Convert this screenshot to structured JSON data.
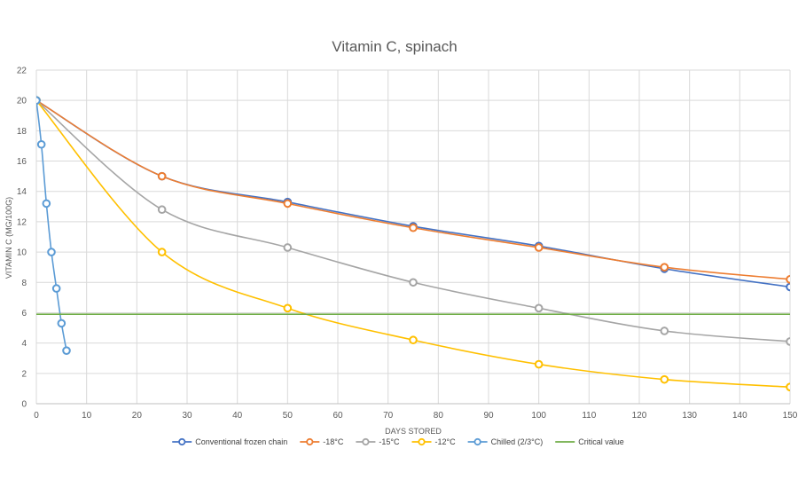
{
  "chart_data": {
    "type": "line",
    "title": "Vitamin C, spinach",
    "xlabel": "DAYS STORED",
    "ylabel": "VITAMIN C (MG/100G)",
    "xlim": [
      0,
      150
    ],
    "ylim": [
      0,
      22
    ],
    "x_ticks": [
      "0",
      "10",
      "20",
      "30",
      "40",
      "50",
      "60",
      "70",
      "80",
      "90",
      "100",
      "110",
      "120",
      "130",
      "140",
      "150"
    ],
    "y_ticks": [
      "0",
      "2",
      "4",
      "6",
      "8",
      "10",
      "12",
      "14",
      "16",
      "18",
      "20",
      "22"
    ],
    "grid": true,
    "legend_position": "bottom",
    "series": [
      {
        "name": "Conventional frozen chain",
        "color": "#4472c4",
        "marker": true,
        "points": [
          [
            0,
            20
          ],
          [
            25,
            15
          ],
          [
            50,
            13.3
          ],
          [
            75,
            11.7
          ],
          [
            100,
            10.4
          ],
          [
            125,
            8.9
          ],
          [
            150,
            7.7
          ]
        ]
      },
      {
        "name": "-18°C",
        "color": "#ed7d31",
        "marker": true,
        "points": [
          [
            0,
            20
          ],
          [
            25,
            15
          ],
          [
            50,
            13.2
          ],
          [
            75,
            11.6
          ],
          [
            100,
            10.3
          ],
          [
            125,
            9.0
          ],
          [
            150,
            8.2
          ]
        ]
      },
      {
        "name": "-15°C",
        "color": "#a5a5a5",
        "marker": true,
        "points": [
          [
            0,
            20
          ],
          [
            25,
            12.8
          ],
          [
            50,
            10.3
          ],
          [
            75,
            8.0
          ],
          [
            100,
            6.3
          ],
          [
            125,
            4.8
          ],
          [
            150,
            4.1
          ]
        ]
      },
      {
        "name": "-12°C",
        "color": "#ffc000",
        "marker": true,
        "points": [
          [
            0,
            20
          ],
          [
            25,
            10.0
          ],
          [
            50,
            6.3
          ],
          [
            75,
            4.2
          ],
          [
            100,
            2.6
          ],
          [
            125,
            1.6
          ],
          [
            150,
            1.1
          ]
        ]
      },
      {
        "name": "Chilled (2/3°C)",
        "color": "#5b9bd5",
        "marker": true,
        "points": [
          [
            0,
            20
          ],
          [
            1,
            17.1
          ],
          [
            2,
            13.2
          ],
          [
            3,
            10.0
          ],
          [
            4,
            7.6
          ],
          [
            5,
            5.3
          ],
          [
            6,
            3.5
          ]
        ]
      },
      {
        "name": "Critical value",
        "color": "#70ad47",
        "marker": false,
        "points": [
          [
            0,
            5.9
          ],
          [
            150,
            5.9
          ]
        ]
      }
    ]
  }
}
